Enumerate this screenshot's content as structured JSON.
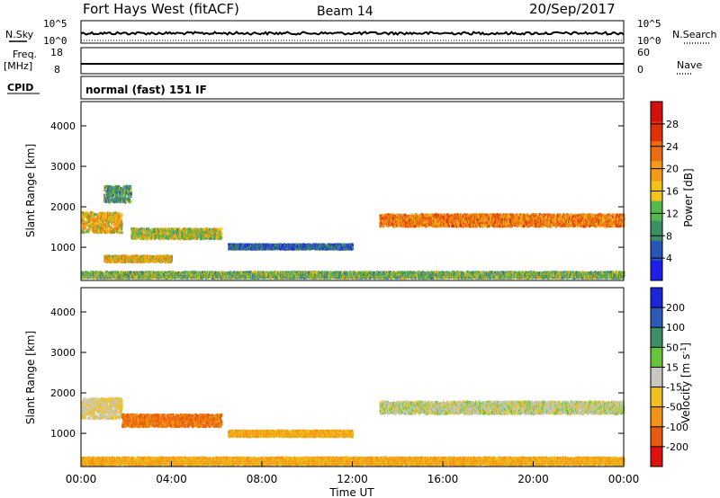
{
  "header": {
    "title": "Fort Hays West (fitACF)",
    "beam": "Beam 14",
    "date": "20/Sep/2017"
  },
  "panels": {
    "nsky_label": "N.Sky",
    "nsearch_label": "N.Search",
    "freq_label": "Freq.",
    "freq_unit": "[MHz]",
    "nave_label": "Nave",
    "cpid_label": "CPID",
    "cpid_value": "normal (fast) 151 IF",
    "noise_ticks_left": [
      "10^5",
      "10^0"
    ],
    "noise_ticks_right": [
      "10^5",
      "10^0"
    ],
    "freq_ticks_left": [
      "18",
      "8"
    ],
    "freq_ticks_right": [
      "60",
      "0"
    ]
  },
  "colors": {
    "power": [
      "#1e1ee8",
      "#2a55b8",
      "#3e8f66",
      "#55b84a",
      "#f2c419",
      "#f39a18",
      "#ea6d10",
      "#e03008",
      "#d40f0f"
    ],
    "velocity": [
      "#1a26d8",
      "#2d5bb5",
      "#3e8f66",
      "#66c43e",
      "#c8c8c0",
      "#f0c020",
      "#f29415",
      "#e85a10",
      "#e01010"
    ]
  },
  "chart_data": [
    {
      "type": "heatmap",
      "name": "power",
      "ylabel": "Slant Range [km]",
      "yticks": [
        1000,
        2000,
        3000,
        4000
      ],
      "ylim": [
        180,
        4600
      ],
      "xlim": [
        0,
        24
      ],
      "colorbar_label": "Power [dB]",
      "colorbar_ticks": [
        4,
        8,
        12,
        16,
        20,
        24,
        28
      ],
      "colorbar_range": [
        0,
        32
      ],
      "echo_regions": [
        {
          "t_start": 0.0,
          "t_end": 1.8,
          "range_center": 1600,
          "range_width": 500,
          "value": 18
        },
        {
          "t_start": 1.0,
          "t_end": 2.2,
          "range_center": 2300,
          "range_width": 400,
          "value": 10
        },
        {
          "t_start": 2.2,
          "t_end": 6.2,
          "range_center": 1320,
          "range_width": 250,
          "value": 14
        },
        {
          "t_start": 6.5,
          "t_end": 12.0,
          "range_center": 1000,
          "range_width": 120,
          "value": 6
        },
        {
          "t_start": 1.0,
          "t_end": 4.0,
          "range_center": 700,
          "range_width": 150,
          "value": 18
        },
        {
          "t_start": 13.2,
          "t_end": 24.0,
          "range_center": 1650,
          "range_width": 300,
          "value": 22
        },
        {
          "t_start": 0.0,
          "t_end": 24.0,
          "range_center": 300,
          "range_width": 150,
          "value": 12
        }
      ]
    },
    {
      "type": "heatmap",
      "name": "velocity",
      "ylabel": "Slant Range [km]",
      "yticks": [
        1000,
        2000,
        3000,
        4000
      ],
      "ylim": [
        180,
        4600
      ],
      "xlim": [
        0,
        24
      ],
      "xlabel": "Time UT",
      "xticks": [
        "00:00",
        "04:00",
        "08:00",
        "12:00",
        "16:00",
        "20:00",
        "00:00"
      ],
      "colorbar_label": "Velocity [m s^-1]",
      "colorbar_ticks": [
        "200",
        "100",
        "50",
        "15",
        "-15",
        "-50",
        "-100",
        "-200"
      ],
      "echo_regions": [
        {
          "t_start": 0.0,
          "t_end": 1.8,
          "range_center": 1600,
          "range_width": 500,
          "value": -15
        },
        {
          "t_start": 1.8,
          "t_end": 6.2,
          "range_center": 1300,
          "range_width": 300,
          "value": -100
        },
        {
          "t_start": 6.5,
          "t_end": 12.0,
          "range_center": 980,
          "range_width": 150,
          "value": -50
        },
        {
          "t_start": 13.2,
          "t_end": 24.0,
          "range_center": 1620,
          "range_width": 300,
          "value": 0
        },
        {
          "t_start": 0.0,
          "t_end": 24.0,
          "range_center": 300,
          "range_width": 180,
          "value": -50
        }
      ]
    }
  ]
}
